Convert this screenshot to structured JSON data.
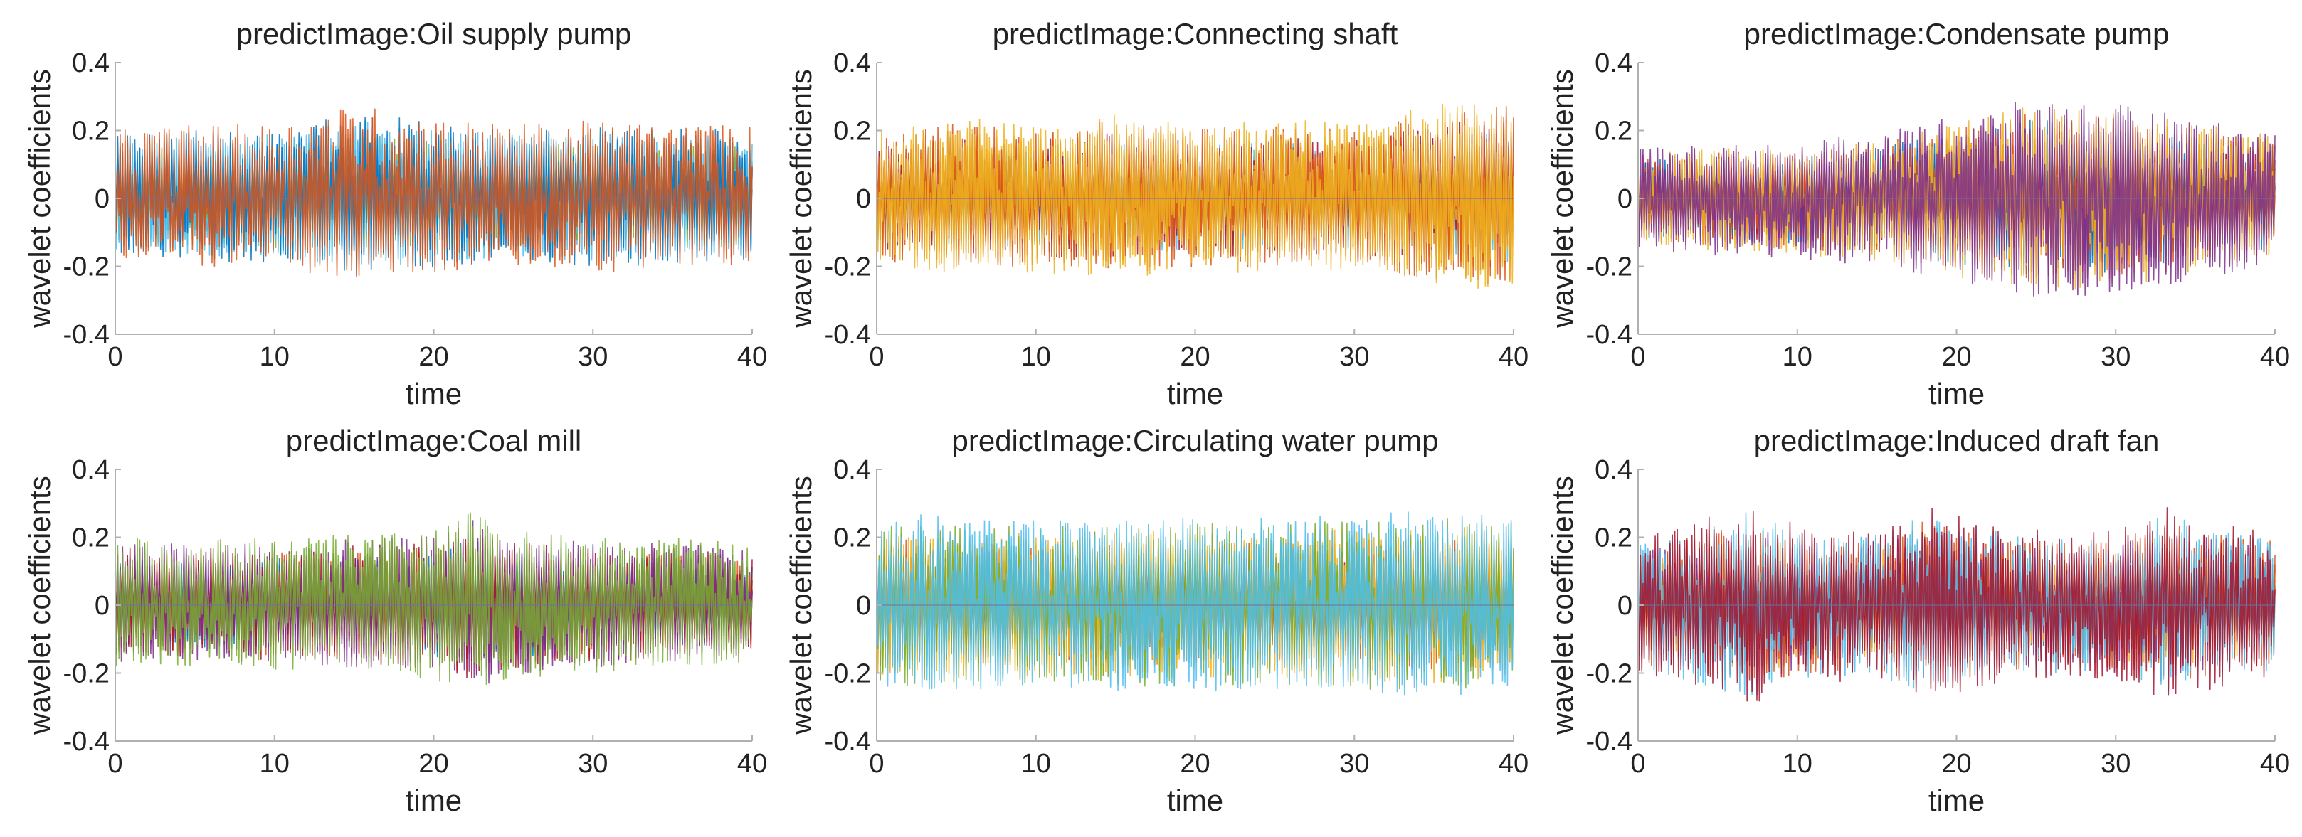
{
  "chart_data": [
    {
      "type": "line",
      "title": "predictImage:Oil supply pump",
      "xlabel": "time",
      "ylabel": "wavelet coefficients",
      "xlim": [
        0,
        40
      ],
      "ylim": [
        -0.4,
        0.4
      ],
      "xticks": [
        0,
        10,
        20,
        30,
        40
      ],
      "yticks": [
        -0.4,
        -0.2,
        0,
        0.2,
        0.4
      ],
      "xtick_labels": [
        "0",
        "10",
        "20",
        "30",
        "40"
      ],
      "ytick_labels": [
        "-0.4",
        "-0.2",
        "0",
        "0.2",
        "0.4"
      ],
      "envelope": {
        "x": [
          0,
          5,
          10,
          15,
          20,
          25,
          30,
          35,
          40
        ],
        "upper": [
          0.2,
          0.22,
          0.22,
          0.28,
          0.24,
          0.22,
          0.23,
          0.22,
          0.22
        ],
        "lower": [
          -0.18,
          -0.2,
          -0.21,
          -0.25,
          -0.22,
          -0.2,
          -0.22,
          -0.21,
          -0.2
        ]
      },
      "palette": [
        "#0072BD",
        "#D95319",
        "#EDB120",
        "#7E2F8E",
        "#77AC30",
        "#4DBEEE",
        "#A2142F"
      ],
      "dominant_color": "#4DBEEE"
    },
    {
      "type": "line",
      "title": "predictImage:Connecting shaft",
      "xlabel": "time",
      "ylabel": "wavelet coefficients",
      "xlim": [
        0,
        40
      ],
      "ylim": [
        -0.4,
        0.4
      ],
      "xticks": [
        0,
        10,
        20,
        30,
        40
      ],
      "yticks": [
        -0.4,
        -0.2,
        0,
        0.2,
        0.4
      ],
      "xtick_labels": [
        "0",
        "10",
        "20",
        "30",
        "40"
      ],
      "ytick_labels": [
        "-0.4",
        "-0.2",
        "0",
        "0.2",
        "0.4"
      ],
      "envelope": {
        "x": [
          0,
          5,
          10,
          15,
          20,
          25,
          30,
          35,
          40
        ],
        "upper": [
          0.2,
          0.24,
          0.22,
          0.25,
          0.22,
          0.24,
          0.22,
          0.28,
          0.3
        ],
        "lower": [
          -0.2,
          -0.22,
          -0.22,
          -0.24,
          -0.22,
          -0.22,
          -0.21,
          -0.26,
          -0.28
        ]
      },
      "palette": [
        "#0072BD",
        "#D95319",
        "#EDB120",
        "#7E2F8E",
        "#77AC30",
        "#4DBEEE",
        "#A2142F"
      ],
      "dominant_color": "#EDB120"
    },
    {
      "type": "line",
      "title": "predictImage:Condensate pump",
      "xlabel": "time",
      "ylabel": "wavelet coefficients",
      "xlim": [
        0,
        40
      ],
      "ylim": [
        -0.4,
        0.4
      ],
      "xticks": [
        0,
        10,
        20,
        30,
        40
      ],
      "yticks": [
        -0.4,
        -0.2,
        0,
        0.2,
        0.4
      ],
      "xtick_labels": [
        "0",
        "10",
        "20",
        "30",
        "40"
      ],
      "ytick_labels": [
        "-0.4",
        "-0.2",
        "0",
        "0.2",
        "0.4"
      ],
      "envelope": {
        "x": [
          0,
          5,
          10,
          15,
          20,
          25,
          30,
          35,
          40
        ],
        "upper": [
          0.15,
          0.16,
          0.16,
          0.2,
          0.24,
          0.3,
          0.28,
          0.24,
          0.2
        ],
        "lower": [
          -0.15,
          -0.17,
          -0.18,
          -0.2,
          -0.25,
          -0.3,
          -0.28,
          -0.24,
          -0.2
        ]
      },
      "palette": [
        "#0072BD",
        "#D95319",
        "#EDB120",
        "#7E2F8E",
        "#77AC30",
        "#4DBEEE",
        "#A2142F"
      ],
      "dominant_color": "#D95319"
    },
    {
      "type": "line",
      "title": "predictImage:Coal mill",
      "xlabel": "time",
      "ylabel": "wavelet coefficients",
      "xlim": [
        0,
        40
      ],
      "ylim": [
        -0.4,
        0.4
      ],
      "xticks": [
        0,
        10,
        20,
        30,
        40
      ],
      "yticks": [
        -0.4,
        -0.2,
        0,
        0.2,
        0.4
      ],
      "xtick_labels": [
        "0",
        "10",
        "20",
        "30",
        "40"
      ],
      "ytick_labels": [
        "-0.4",
        "-0.2",
        "0",
        "0.2",
        "0.4"
      ],
      "envelope": {
        "x": [
          0,
          5,
          10,
          15,
          20,
          22.5,
          25,
          30,
          35,
          40
        ],
        "upper": [
          0.2,
          0.2,
          0.2,
          0.21,
          0.22,
          0.28,
          0.22,
          0.2,
          0.2,
          0.18
        ],
        "lower": [
          -0.18,
          -0.18,
          -0.19,
          -0.2,
          -0.22,
          -0.27,
          -0.22,
          -0.2,
          -0.18,
          -0.17
        ]
      },
      "palette": [
        "#0072BD",
        "#D95319",
        "#EDB120",
        "#7E2F8E",
        "#77AC30",
        "#4DBEEE",
        "#A2142F"
      ],
      "dominant_color": "#A2142F"
    },
    {
      "type": "line",
      "title": "predictImage:Circulating water pump",
      "xlabel": "time",
      "ylabel": "wavelet coefficients",
      "xlim": [
        0,
        40
      ],
      "ylim": [
        -0.4,
        0.4
      ],
      "xticks": [
        0,
        10,
        20,
        30,
        40
      ],
      "yticks": [
        -0.4,
        -0.2,
        0,
        0.2,
        0.4
      ],
      "xtick_labels": [
        "0",
        "10",
        "20",
        "30",
        "40"
      ],
      "ytick_labels": [
        "-0.4",
        "-0.2",
        "0",
        "0.2",
        "0.4"
      ],
      "envelope": {
        "x": [
          0,
          5,
          10,
          15,
          20,
          25,
          30,
          35,
          40
        ],
        "upper": [
          0.28,
          0.26,
          0.25,
          0.26,
          0.26,
          0.26,
          0.27,
          0.28,
          0.26
        ],
        "lower": [
          -0.26,
          -0.25,
          -0.25,
          -0.26,
          -0.26,
          -0.25,
          -0.27,
          -0.27,
          -0.26
        ]
      },
      "palette": [
        "#0072BD",
        "#D95319",
        "#EDB120",
        "#7E2F8E",
        "#77AC30",
        "#4DBEEE",
        "#A2142F"
      ],
      "dominant_color": "#EDB120"
    },
    {
      "type": "line",
      "title": "predictImage:Induced draft fan",
      "xlabel": "time",
      "ylabel": "wavelet coefficients",
      "xlim": [
        0,
        40
      ],
      "ylim": [
        -0.4,
        0.4
      ],
      "xticks": [
        0,
        10,
        20,
        30,
        40
      ],
      "yticks": [
        -0.4,
        -0.2,
        0,
        0.2,
        0.4
      ],
      "xtick_labels": [
        "0",
        "10",
        "20",
        "30",
        "40"
      ],
      "ytick_labels": [
        "-0.4",
        "-0.2",
        "0",
        "0.2",
        "0.4"
      ],
      "envelope": {
        "x": [
          0,
          3,
          7,
          10,
          14,
          18,
          22,
          26,
          30,
          33,
          37,
          40
        ],
        "upper": [
          0.2,
          0.24,
          0.3,
          0.24,
          0.22,
          0.3,
          0.24,
          0.22,
          0.22,
          0.3,
          0.24,
          0.22
        ],
        "lower": [
          -0.2,
          -0.24,
          -0.3,
          -0.24,
          -0.22,
          -0.28,
          -0.24,
          -0.22,
          -0.22,
          -0.28,
          -0.24,
          -0.22
        ]
      },
      "palette": [
        "#0072BD",
        "#D95319",
        "#EDB120",
        "#7E2F8E",
        "#77AC30",
        "#4DBEEE",
        "#A2142F"
      ],
      "dominant_color": "#D95319"
    }
  ]
}
